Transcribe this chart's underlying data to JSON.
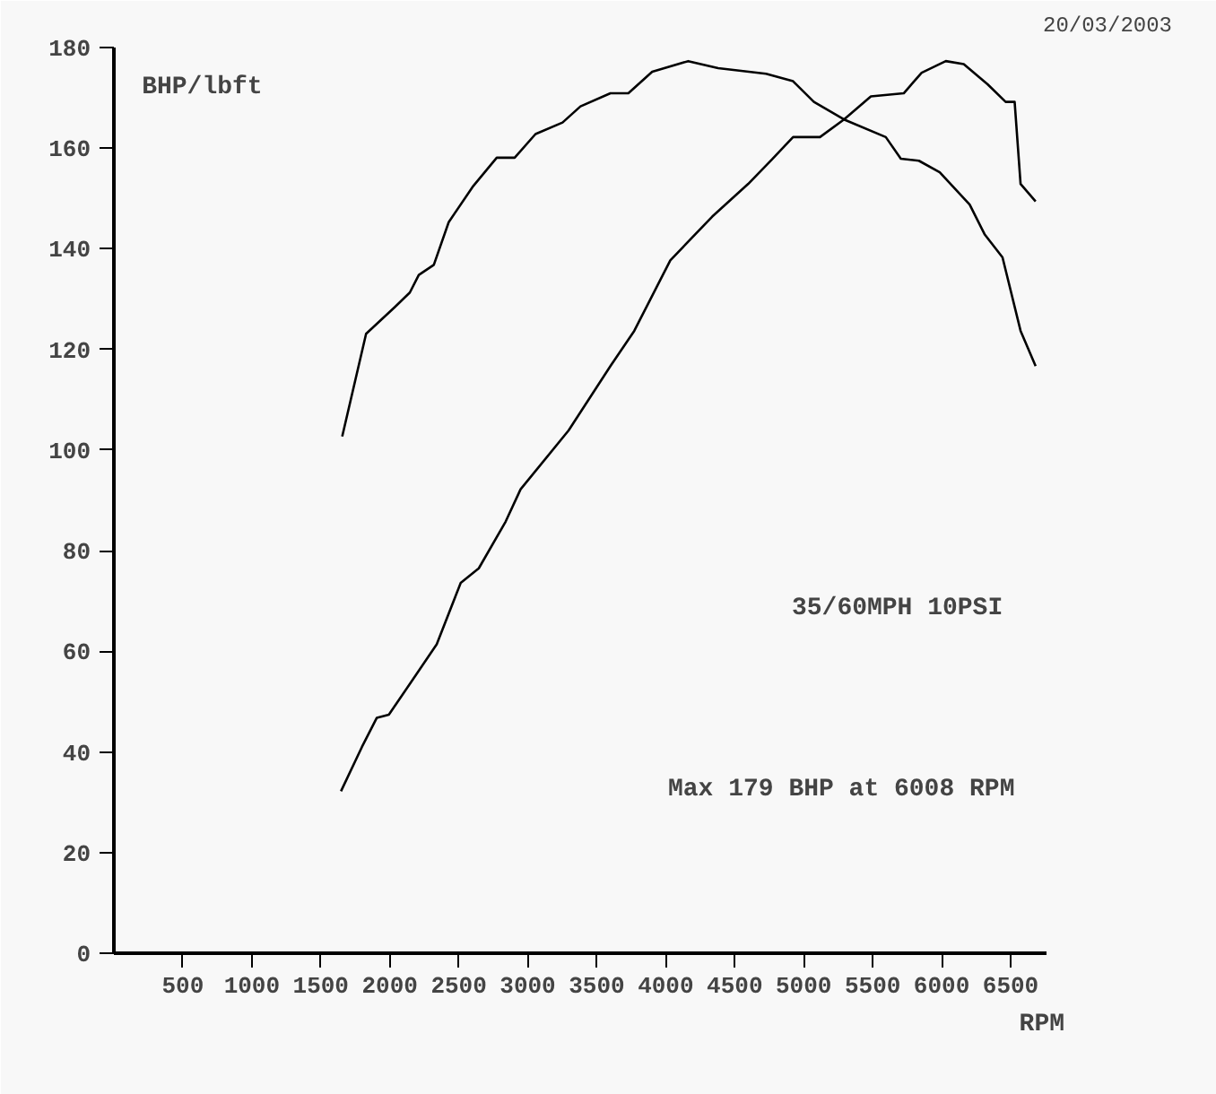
{
  "chart_data": {
    "type": "line",
    "xlabel": "RPM",
    "ylabel": "BHP/lbft",
    "annotations": [
      "20/03/2003",
      "35/60MPH 10PSI",
      "Max 179 BHP at 6008 RPM"
    ],
    "series": [
      {
        "color": "#000000",
        "x": [
          1655,
          1828,
          2036,
          2145,
          2210,
          2319,
          2427,
          2600,
          2775,
          2905,
          3056,
          3252,
          3382,
          3599,
          3729,
          3902,
          4163,
          4380,
          4727,
          4923,
          5074,
          5292,
          5595,
          5704,
          5835,
          5986,
          6203,
          6311,
          6441,
          6572,
          6681
        ],
        "values": [
          102.7,
          123.1,
          128.4,
          131.3,
          134.8,
          136.8,
          145.3,
          152.3,
          158.1,
          158.1,
          162.8,
          165.1,
          168.3,
          170.9,
          170.9,
          175.2,
          177.3,
          175.9,
          174.8,
          173.3,
          169.2,
          165.7,
          162.2,
          157.9,
          157.5,
          155.2,
          148.8,
          142.9,
          138.3,
          123.7,
          116.7
        ]
      },
      {
        "color": "#000000",
        "x": [
          1646,
          1798,
          1906,
          1993,
          2167,
          2340,
          2514,
          2645,
          2840,
          2948,
          3296,
          3599,
          3772,
          4033,
          4337,
          4598,
          4771,
          4923,
          5118,
          5292,
          5487,
          5725,
          5855,
          6030,
          6160,
          6333,
          6464,
          6529,
          6572,
          6681
        ],
        "values": [
          32.2,
          41.0,
          46.8,
          47.4,
          54.4,
          61.4,
          73.6,
          76.5,
          85.8,
          92.2,
          103.9,
          116.7,
          123.7,
          137.7,
          146.4,
          152.9,
          157.8,
          162.2,
          162.2,
          165.7,
          170.3,
          170.9,
          175.0,
          177.3,
          176.7,
          172.7,
          169.2,
          169.2,
          152.9,
          149.4
        ]
      }
    ],
    "xlim": [
      0,
      6760
    ],
    "xticks": [
      500,
      1000,
      1500,
      2000,
      2500,
      3000,
      3500,
      4000,
      4500,
      5000,
      5500,
      6000,
      6500
    ],
    "ylim": [
      0,
      180
    ],
    "yticks": [
      0,
      20,
      40,
      60,
      80,
      100,
      120,
      140,
      160,
      180
    ],
    "grid": false
  }
}
